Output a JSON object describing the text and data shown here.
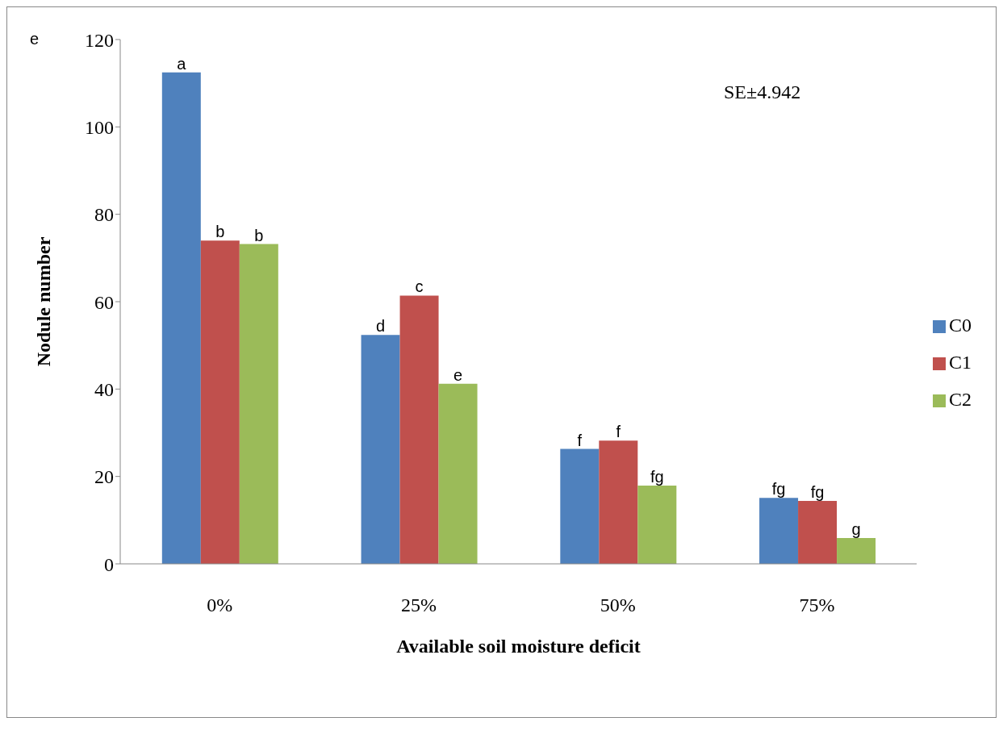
{
  "chart_data": {
    "type": "bar",
    "xlabel": "Available soil moisture  deficit",
    "ylabel": "Nodule number",
    "categories": [
      "0%",
      "25%",
      "50%",
      "75%"
    ],
    "series": [
      {
        "name": "C0",
        "color": "#4f81bd",
        "values": [
          112.5,
          52.4,
          26.3,
          15.1
        ],
        "value_labels": [
          "a",
          "d",
          "f",
          "fg"
        ]
      },
      {
        "name": "C1",
        "color": "#c0504d",
        "values": [
          74.0,
          61.4,
          28.2,
          14.4
        ],
        "value_labels": [
          "b",
          "c",
          "f",
          "fg"
        ]
      },
      {
        "name": "C2",
        "color": "#9bbb59",
        "values": [
          73.2,
          41.2,
          17.9,
          5.9
        ],
        "value_labels": [
          "b",
          "e",
          "fg",
          "g"
        ]
      }
    ],
    "ylim": [
      0,
      120
    ],
    "yticks": [
      0,
      20,
      40,
      60,
      80,
      100,
      120
    ],
    "grid": false,
    "legend": "right",
    "annotations": [
      "e",
      "SE±4.942"
    ]
  }
}
